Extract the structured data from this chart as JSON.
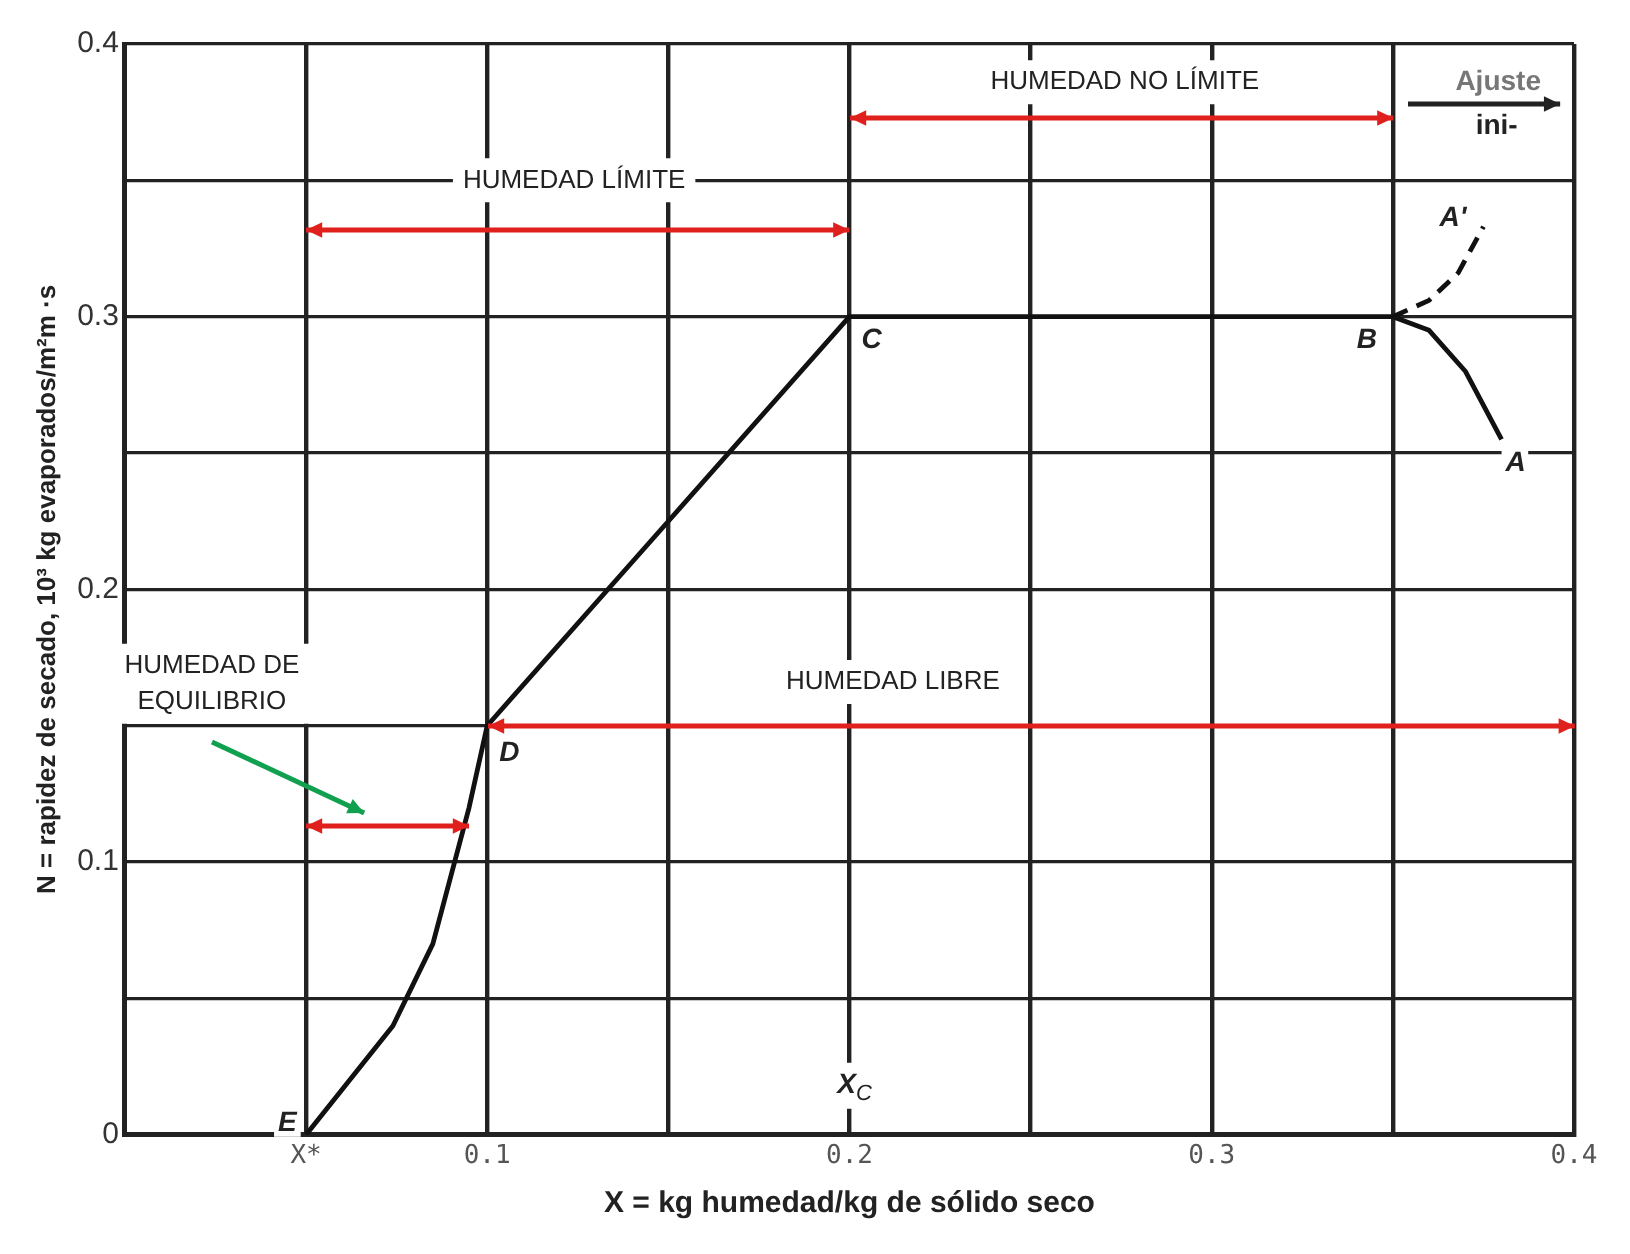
{
  "chart_data": {
    "type": "line",
    "xlabel": "X = kg humedad/kg de sólido seco",
    "ylabel": "N = rapidez de secado, 10³ kg evaporados/m²m ·s",
    "xlim": [
      0,
      0.4
    ],
    "ylim": [
      0,
      0.4
    ],
    "xticks": [
      {
        "value": 0.05,
        "label": "X*"
      },
      0.1,
      {
        "value": 0.15,
        "label": null
      },
      0.2,
      {
        "value": 0.25,
        "label": null
      },
      0.3,
      {
        "value": 0.35,
        "label": null
      },
      0.4
    ],
    "yticks": [
      0,
      {
        "value": 0.05,
        "label": null
      },
      0.1,
      {
        "value": 0.15,
        "label": null
      },
      0.2,
      {
        "value": 0.25,
        "label": null
      },
      0.3,
      {
        "value": 0.35,
        "label": null
      },
      0.4
    ],
    "grid": true,
    "legend": false,
    "marker": "none",
    "series": [
      {
        "color": "#111111",
        "line_style": "solid",
        "x": [
          0.05,
          0.062,
          0.074,
          0.085,
          0.091,
          0.095,
          0.1,
          0.15,
          0.2,
          0.35,
          0.36,
          0.37,
          0.38
        ],
        "values": [
          0,
          0.02,
          0.04,
          0.07,
          0.1,
          0.12,
          0.15,
          0.225,
          0.3,
          0.3,
          0.295,
          0.28,
          0.255
        ]
      },
      {
        "color": "#111111",
        "line_style": "dashed",
        "x": [
          0.35,
          0.36,
          0.368,
          0.375
        ],
        "values": [
          0.3,
          0.306,
          0.316,
          0.333
        ]
      }
    ],
    "annotations": [
      {
        "text": "E",
        "x": 0.05,
        "y": 0
      },
      {
        "text": "D",
        "x": 0.1,
        "y": 0.15
      },
      {
        "text": "C",
        "x": 0.2,
        "y": 0.3
      },
      {
        "text": "B",
        "x": 0.35,
        "y": 0.3
      },
      {
        "text": "A",
        "x": 0.38,
        "y": 0.255
      },
      {
        "text": "A'",
        "x": 0.375,
        "y": 0.333
      },
      "X$_{C}$",
      "Ajuste",
      "ini-",
      "HUMEDAD LÍMITE",
      "HUMEDAD NO LÍMITE",
      "HUMEDAD LIBRE",
      "HUMEDAD DE EQUILIBRIO"
    ]
  }
}
